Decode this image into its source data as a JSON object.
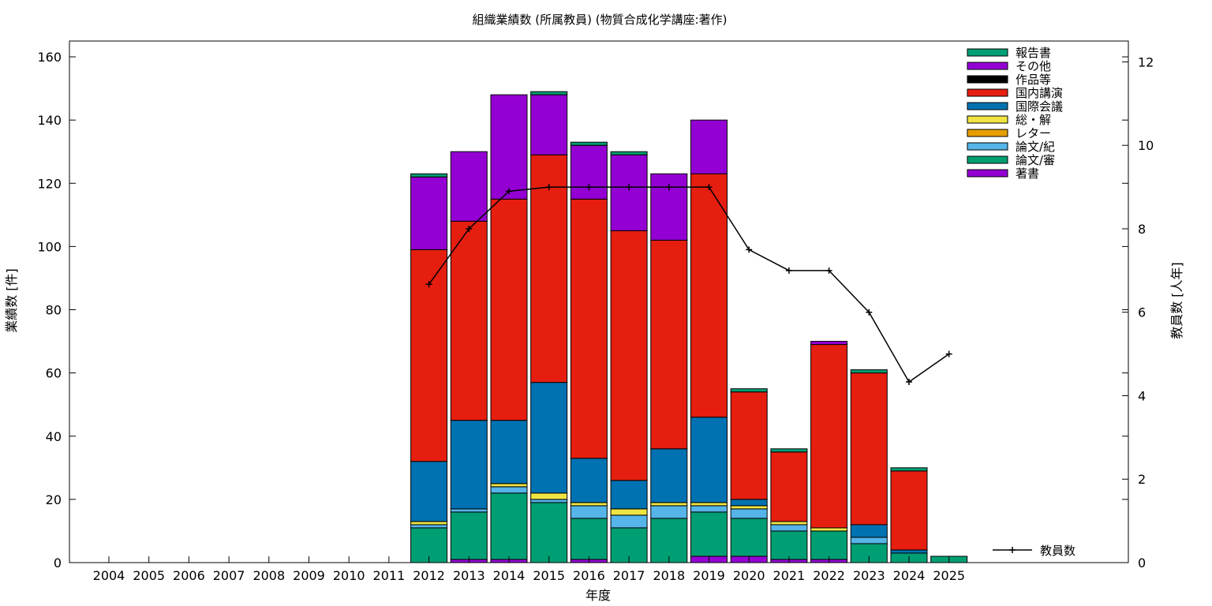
{
  "chart_data": {
    "type": "bar",
    "stacked": true,
    "title": "組織業績数 (所属教員) (物質合成化学講座:著作)",
    "xlabel": "年度",
    "ylabel": "業績数 [件]",
    "y2label": "教員数 [人年]",
    "ylim": [
      0,
      165
    ],
    "y2lim": [
      0,
      12.5
    ],
    "yticks": [
      0,
      20,
      40,
      60,
      80,
      100,
      120,
      140,
      160
    ],
    "y2ticks": [
      0,
      2,
      4,
      6,
      8,
      10,
      12
    ],
    "grid": false,
    "legend_position": "top-right",
    "categories": [
      "2004",
      "2005",
      "2006",
      "2007",
      "2008",
      "2009",
      "2010",
      "2011",
      "2012",
      "2013",
      "2014",
      "2015",
      "2016",
      "2017",
      "2018",
      "2019",
      "2020",
      "2021",
      "2022",
      "2023",
      "2024",
      "2025"
    ],
    "series": [
      {
        "name": "著書",
        "color": "#9400d3",
        "values": [
          0,
          0,
          0,
          0,
          0,
          0,
          0,
          0,
          0,
          1,
          1,
          0,
          1,
          0,
          0,
          2,
          2,
          1,
          1,
          0,
          0,
          0
        ]
      },
      {
        "name": "論文/審",
        "color": "#009e73",
        "values": [
          0,
          0,
          0,
          0,
          0,
          0,
          0,
          0,
          11,
          15,
          21,
          19,
          13,
          11,
          14,
          14,
          12,
          9,
          9,
          6,
          3,
          2
        ]
      },
      {
        "name": "論文/紀",
        "color": "#56b4e9",
        "values": [
          0,
          0,
          0,
          0,
          0,
          0,
          0,
          0,
          1,
          1,
          2,
          1,
          4,
          4,
          4,
          2,
          3,
          2,
          0,
          2,
          0,
          0
        ]
      },
      {
        "name": "レター",
        "color": "#e69f00",
        "values": [
          0,
          0,
          0,
          0,
          0,
          0,
          0,
          0,
          0,
          0,
          0,
          0,
          0,
          0,
          0,
          0,
          0,
          0,
          0,
          0,
          0,
          0
        ]
      },
      {
        "name": "総・解",
        "color": "#f0e442",
        "values": [
          0,
          0,
          0,
          0,
          0,
          0,
          0,
          0,
          1,
          0,
          1,
          2,
          1,
          2,
          1,
          1,
          1,
          1,
          1,
          0,
          0,
          0
        ]
      },
      {
        "name": "国際会議",
        "color": "#0072b2",
        "values": [
          0,
          0,
          0,
          0,
          0,
          0,
          0,
          0,
          19,
          28,
          20,
          35,
          14,
          9,
          17,
          27,
          2,
          0,
          0,
          4,
          1,
          0
        ]
      },
      {
        "name": "国内講演",
        "color": "#e51e10",
        "values": [
          0,
          0,
          0,
          0,
          0,
          0,
          0,
          0,
          67,
          63,
          70,
          72,
          82,
          79,
          66,
          77,
          34,
          22,
          58,
          48,
          25,
          0
        ]
      },
      {
        "name": "作品等",
        "color": "#000000",
        "values": [
          0,
          0,
          0,
          0,
          0,
          0,
          0,
          0,
          0,
          0,
          0,
          0,
          0,
          0,
          0,
          0,
          0,
          0,
          0,
          0,
          0,
          0
        ]
      },
      {
        "name": "その他",
        "color": "#9400d3",
        "values": [
          0,
          0,
          0,
          0,
          0,
          0,
          0,
          0,
          23,
          22,
          33,
          19,
          17,
          24,
          21,
          17,
          0,
          0,
          1,
          0,
          0,
          0
        ]
      },
      {
        "name": "報告書",
        "color": "#009e73",
        "values": [
          0,
          0,
          0,
          0,
          0,
          0,
          0,
          0,
          1,
          0,
          0,
          1,
          1,
          1,
          0,
          0,
          1,
          1,
          0,
          1,
          1,
          0
        ]
      }
    ],
    "line": {
      "name": "教員数",
      "axis": "y2",
      "color": "#000000",
      "values": [
        null,
        null,
        null,
        null,
        null,
        null,
        null,
        null,
        6.67,
        8,
        8.9,
        9,
        9,
        9,
        9,
        9,
        7.5,
        7,
        7,
        6,
        4.33,
        5
      ]
    }
  }
}
